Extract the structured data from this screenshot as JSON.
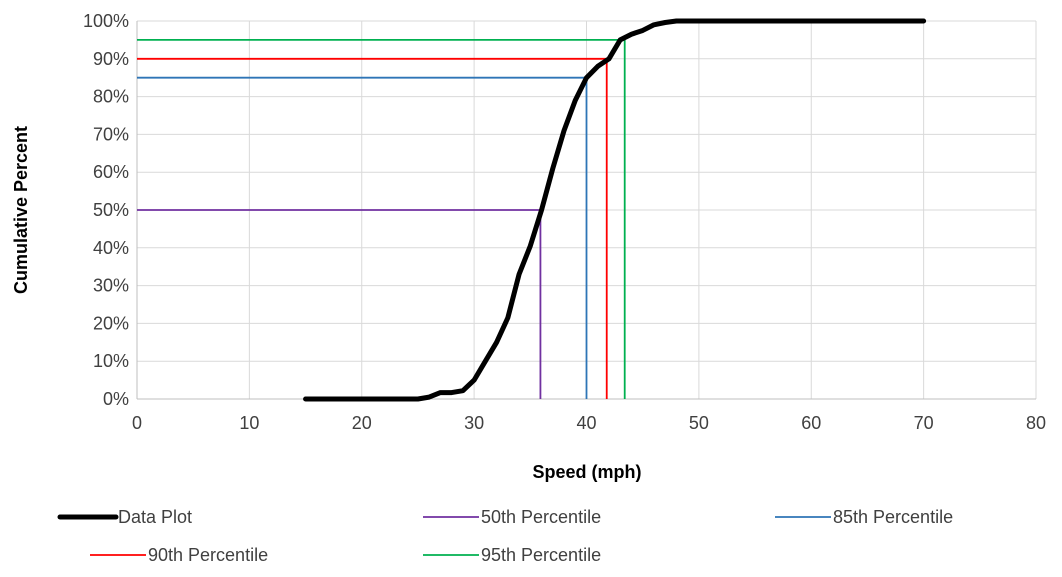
{
  "chart_data": {
    "type": "line",
    "xlabel": "Speed (mph)",
    "ylabel": "Cumulative Percent",
    "xlim": [
      0,
      80
    ],
    "ylim": [
      0,
      100
    ],
    "x_ticks": [
      0,
      10,
      20,
      30,
      40,
      50,
      60,
      70,
      80
    ],
    "x_tick_labels": [
      "0",
      "10",
      "20",
      "30",
      "40",
      "50",
      "60",
      "70",
      "80"
    ],
    "y_ticks": [
      0,
      10,
      20,
      30,
      40,
      50,
      60,
      70,
      80,
      90,
      100
    ],
    "y_tick_labels": [
      "0%",
      "10%",
      "20%",
      "30%",
      "40%",
      "50%",
      "60%",
      "70%",
      "80%",
      "90%",
      "100%"
    ],
    "grid": true,
    "legend_position": "bottom",
    "series": [
      {
        "name": "Data Plot",
        "color": "#000000",
        "x": [
          15,
          16,
          17,
          18,
          19,
          20,
          21,
          22,
          23,
          24,
          25,
          26,
          27,
          28,
          29,
          30,
          31,
          32,
          33,
          34,
          35,
          36,
          37,
          38,
          39,
          40,
          41,
          42,
          43,
          44,
          45,
          46,
          47,
          48,
          49,
          50,
          55,
          60,
          65,
          70
        ],
        "y": [
          0,
          0,
          0,
          0,
          0,
          0,
          0,
          0,
          0,
          0,
          0,
          0.5,
          1.7,
          1.7,
          2.2,
          5,
          10,
          15,
          21.5,
          33,
          40.5,
          50,
          61,
          71,
          79,
          85,
          88,
          90,
          95,
          96.5,
          97.5,
          99,
          99.6,
          100,
          100,
          100,
          100,
          100,
          100,
          100
        ]
      },
      {
        "name": "50th Percentile",
        "color": "#7030a0",
        "x": [
          0,
          35.9,
          35.9
        ],
        "y": [
          50,
          50,
          0
        ]
      },
      {
        "name": "85th Percentile",
        "color": "#2e75b6",
        "x": [
          0,
          40,
          40
        ],
        "y": [
          85,
          85,
          0
        ]
      },
      {
        "name": "90th Percentile",
        "color": "#ff0000",
        "x": [
          0,
          41.8,
          41.8
        ],
        "y": [
          90,
          90,
          0
        ]
      },
      {
        "name": "95th Percentile",
        "color": "#00b050",
        "x": [
          0,
          43.4,
          43.4
        ],
        "y": [
          95,
          95,
          0
        ]
      }
    ]
  }
}
